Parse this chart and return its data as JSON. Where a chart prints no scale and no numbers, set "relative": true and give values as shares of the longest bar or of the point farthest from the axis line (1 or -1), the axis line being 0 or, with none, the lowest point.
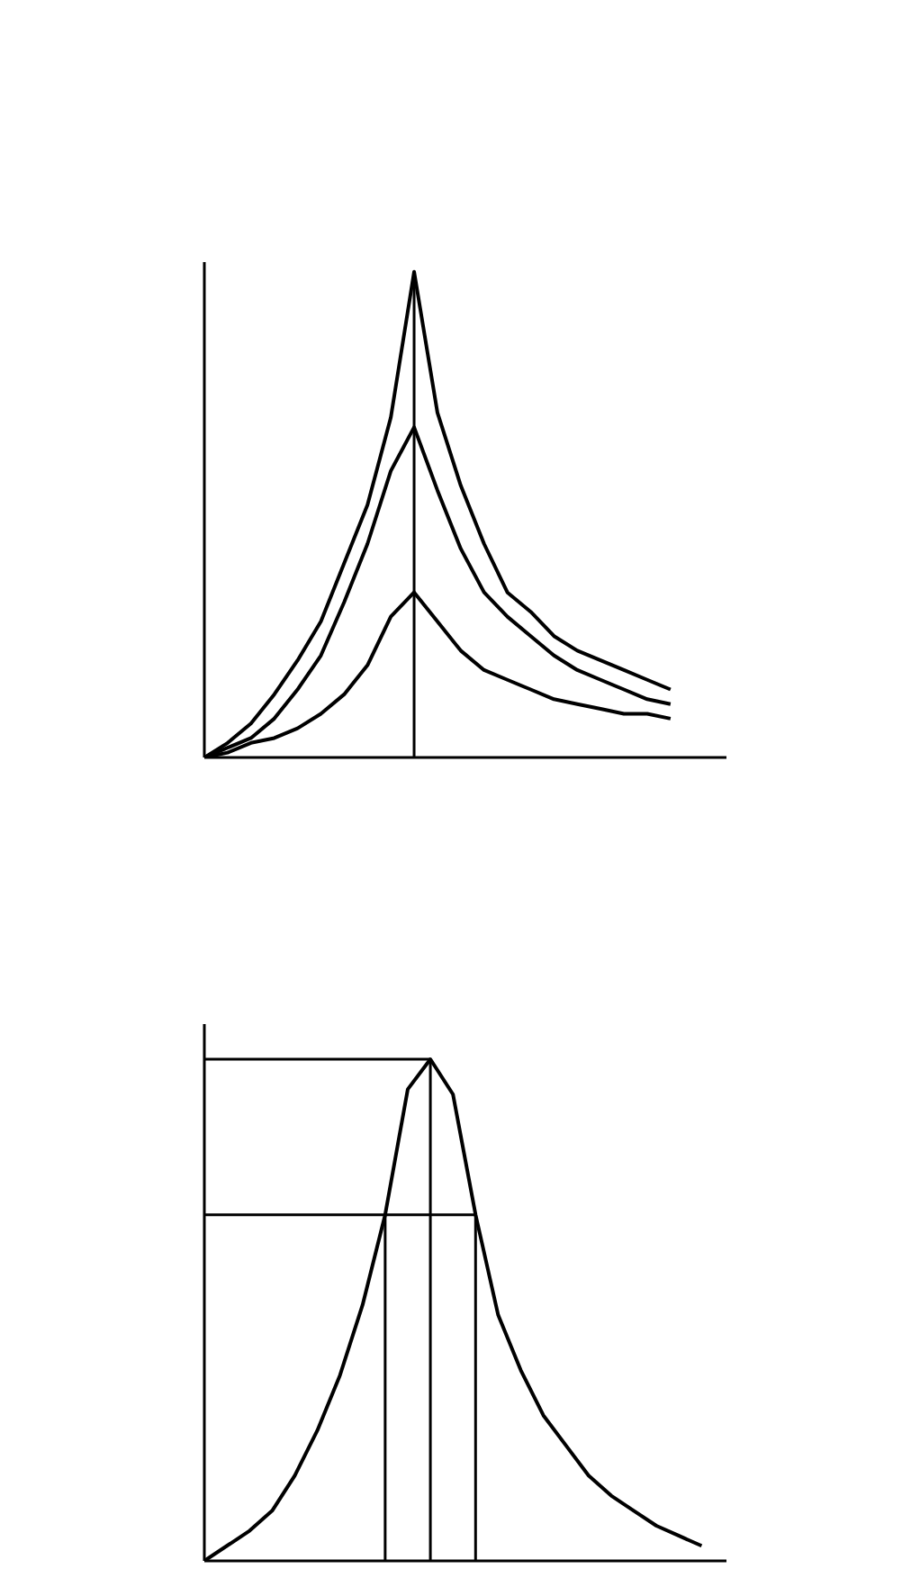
{
  "chart_data": [
    {
      "type": "line",
      "relative": true,
      "tick_labels": false,
      "categories": [
        null,
        null,
        null,
        null,
        null,
        null,
        null,
        null,
        null,
        null,
        null,
        null,
        null,
        null,
        null,
        null,
        null,
        null,
        null,
        null,
        null
      ],
      "series": [
        {
          "color": "#000000",
          "values": [
            0,
            0.03,
            0.07,
            0.13,
            0.2,
            0.28,
            0.4,
            0.52,
            0.7,
            1.0,
            0.71,
            0.56,
            0.44,
            0.34,
            0.3,
            0.25,
            0.22,
            0.2,
            0.18,
            0.16,
            0.14
          ]
        },
        {
          "color": "#000000",
          "values": [
            0,
            0.02,
            0.04,
            0.08,
            0.14,
            0.21,
            0.32,
            0.44,
            0.59,
            0.68,
            0.55,
            0.43,
            0.34,
            0.29,
            0.25,
            0.21,
            0.18,
            0.16,
            0.14,
            0.12,
            0.11
          ]
        },
        {
          "color": "#000000",
          "values": [
            0,
            0.01,
            0.03,
            0.04,
            0.06,
            0.09,
            0.13,
            0.19,
            0.29,
            0.34,
            0.28,
            0.22,
            0.18,
            0.16,
            0.14,
            0.12,
            0.11,
            0.1,
            0.09,
            0.09,
            0.08
          ]
        }
      ]
    },
    {
      "type": "line",
      "relative": true,
      "tick_labels": false,
      "categories": [
        null,
        null,
        null,
        null,
        null,
        null,
        null,
        null,
        null,
        null,
        null,
        null,
        null,
        null,
        null,
        null,
        null,
        null,
        null,
        null,
        null,
        null,
        null
      ],
      "series": [
        {
          "color": "#000000",
          "values": [
            0,
            0.03,
            0.06,
            0.1,
            0.17,
            0.26,
            0.37,
            0.51,
            0.69,
            0.94,
            1.0,
            0.93,
            0.69,
            0.49,
            0.38,
            0.29,
            0.23,
            0.17,
            0.13,
            0.1,
            0.07,
            0.05,
            0.03
          ]
        }
      ],
      "ref_lines": [
        {
          "axis": "y",
          "value": 1.0,
          "color": "#000000"
        },
        {
          "axis": "y",
          "value": 0.69,
          "color": "#000000"
        }
      ]
    }
  ]
}
